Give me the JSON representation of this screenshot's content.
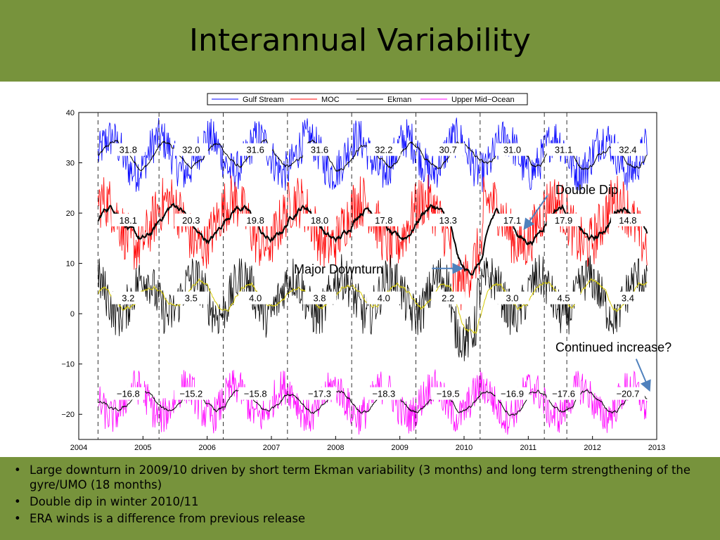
{
  "slide": {
    "title": "Interannual Variability",
    "bullets": [
      "Large downturn in 2009/10 driven by short term Ekman variability (3 months) and long term strengthening of the gyre/UMO (18 months)",
      "Double dip in winter 2010/11",
      "ERA winds is a difference from previous release"
    ]
  },
  "colors": {
    "banner": "#77933c",
    "gulf_stream": "#0000ff",
    "moc": "#ff0000",
    "ekman": "#000000",
    "upper_mid_ocean": "#ff00ff",
    "arrow": "#4f81bd"
  },
  "chart_data": {
    "type": "line",
    "xlim": [
      2004,
      2013
    ],
    "ylim": [
      -25,
      40
    ],
    "xticks": [
      "2004",
      "2005",
      "2006",
      "2007",
      "2008",
      "2009",
      "2010",
      "2011",
      "2012",
      "2013"
    ],
    "yticks": [
      "40",
      "30",
      "20",
      "10",
      "0",
      "−10",
      "−20"
    ],
    "grid": false,
    "legend_position": "top",
    "legend": [
      "Gulf Stream",
      "MOC",
      "Ekman",
      "Upper Mid−Ocean"
    ],
    "period_boundaries": [
      2004.3,
      2005.25,
      2006.25,
      2007.25,
      2008.25,
      2009.25,
      2010.25,
      2011.25,
      2011.6
    ],
    "period_centers": [
      2004.77,
      2005.75,
      2006.75,
      2007.75,
      2008.75,
      2009.75,
      2010.75,
      2011.55,
      2012.55
    ],
    "series": [
      {
        "name": "Gulf Stream",
        "color": "#0000ff",
        "base": 31.5,
        "amp": 3.4,
        "period_means": [
          "31.8",
          "32.0",
          "31.6",
          "31.6",
          "32.2",
          "30.7",
          "31.0",
          "31.1",
          "32.4"
        ],
        "label_y": 32.5
      },
      {
        "name": "MOC",
        "color": "#ff0000",
        "base": 18,
        "amp": 4.5,
        "period_means": [
          "18.1",
          "20.3",
          "19.8",
          "18.0",
          "17.8",
          "13.3",
          "17.1",
          "17.9",
          "14.8"
        ],
        "label_y": 18.5
      },
      {
        "name": "Ekman",
        "color": "#000000",
        "base": 3.5,
        "amp": 3.8,
        "period_means": [
          "3.2",
          "3.5",
          "4.0",
          "3.8",
          "4.0",
          "2.2",
          "3.0",
          "4.5",
          "3.4"
        ],
        "label_y": 3.0
      },
      {
        "name": "Upper Mid−Ocean",
        "color": "#ff00ff",
        "base": -17.5,
        "amp": 3.0,
        "period_means": [
          "−16.8",
          "−15.2",
          "−15.8",
          "−17.3",
          "−18.3",
          "−19.5",
          "−16.9",
          "−17.6",
          "−20.7"
        ],
        "label_y": -16.0
      }
    ],
    "annotations": [
      {
        "text": "Double Dip",
        "anchor": [
          2010.95,
          17.1
        ],
        "from": [
          2011.3,
          23.5
        ]
      },
      {
        "text": "Major Downturn",
        "anchor": [
          2009.95,
          9.0
        ],
        "from": [
          2009.5,
          9.0
        ]
      },
      {
        "text": "Continued increase?",
        "anchor": [
          2012.88,
          -15.0
        ],
        "from": [
          2012.68,
          -9.0
        ]
      }
    ]
  }
}
